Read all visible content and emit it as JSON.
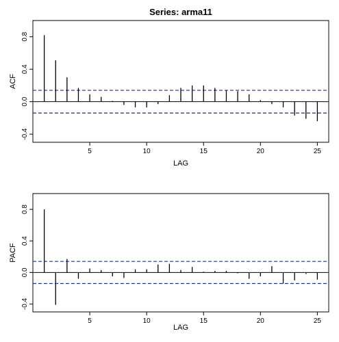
{
  "chart_data": [
    {
      "type": "bar",
      "title": "Series:  arma11",
      "xlabel": "LAG",
      "ylabel": "ACF",
      "xlim": [
        0,
        26
      ],
      "ylim": [
        -0.5,
        1.0
      ],
      "x_ticks": [
        5,
        10,
        15,
        20,
        25
      ],
      "y_ticks": [
        -0.4,
        0.0,
        0.4,
        0.8
      ],
      "y_tick_labels": [
        "-0.4",
        "0.0",
        "0.4",
        "0.8"
      ],
      "confidence_band": [
        -0.14,
        0.14
      ],
      "x": [
        1,
        2,
        3,
        4,
        5,
        6,
        7,
        8,
        9,
        10,
        11,
        12,
        13,
        14,
        15,
        16,
        17,
        18,
        19,
        20,
        21,
        22,
        23,
        24,
        25
      ],
      "values": [
        0.82,
        0.51,
        0.3,
        0.17,
        0.09,
        0.06,
        0.01,
        -0.04,
        -0.07,
        -0.07,
        -0.03,
        0.08,
        0.17,
        0.2,
        0.2,
        0.17,
        0.14,
        0.13,
        0.09,
        0.02,
        -0.03,
        -0.07,
        -0.17,
        -0.21,
        -0.24
      ],
      "colors": {
        "lines": "#000000",
        "band": "#1f2f8f"
      }
    },
    {
      "type": "bar",
      "title": "",
      "xlabel": "LAG",
      "ylabel": "PACF",
      "xlim": [
        0,
        26
      ],
      "ylim": [
        -0.5,
        1.0
      ],
      "x_ticks": [
        5,
        10,
        15,
        20,
        25
      ],
      "y_ticks": [
        -0.4,
        0.0,
        0.4,
        0.8
      ],
      "y_tick_labels": [
        "-0.4",
        "0.0",
        "0.4",
        "0.8"
      ],
      "confidence_band": [
        -0.14,
        0.14
      ],
      "x": [
        1,
        2,
        3,
        4,
        5,
        6,
        7,
        8,
        9,
        10,
        11,
        12,
        13,
        14,
        15,
        16,
        17,
        18,
        19,
        20,
        21,
        22,
        23,
        24,
        25
      ],
      "values": [
        0.8,
        -0.41,
        0.17,
        -0.08,
        0.05,
        0.03,
        -0.05,
        -0.07,
        0.04,
        0.04,
        0.1,
        0.11,
        0.03,
        0.07,
        0.01,
        0.02,
        0.02,
        -0.01,
        -0.08,
        -0.05,
        0.08,
        -0.14,
        -0.1,
        -0.02,
        -0.09
      ],
      "colors": {
        "lines": "#000000",
        "band": "#1f2f8f"
      }
    }
  ]
}
